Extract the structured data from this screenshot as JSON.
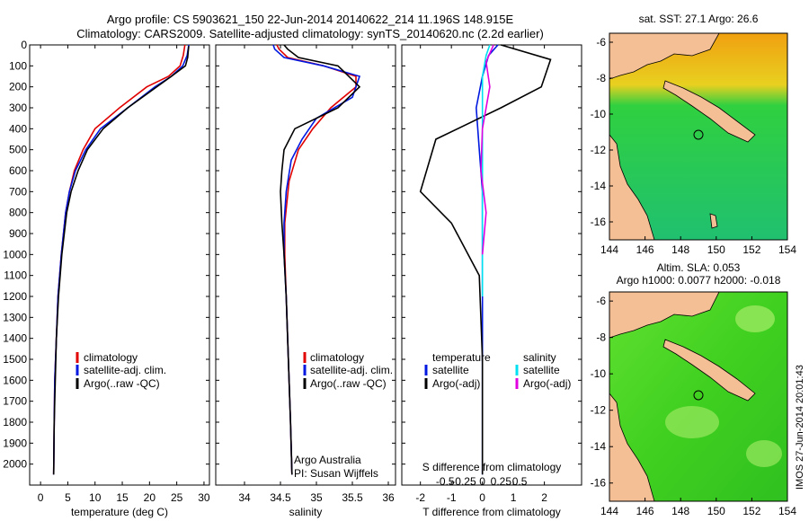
{
  "title_line1": "Argo profile: CS 5903621_150 22-Jun-2014 20140622_214 11.196S 148.915E",
  "title_line2": "Climatology: CARS2009. Satellite-adjusted climatology: synTS_20140620.nc (2.2d earlier)",
  "credit": "Argo Australia",
  "pi": "PI: Susan Wijffels",
  "watermark": "IMOS 27-Jun-2014 20:01:43",
  "colors": {
    "clim": "#e00000",
    "sat": "#0018e0",
    "argo": "#000000",
    "sat_sal": "#00e0f0",
    "argo_sal": "#e000e0",
    "land": "#f5bf96",
    "circle": "#000000"
  },
  "chart_data": [
    {
      "type": "line",
      "name": "temperature",
      "xlabel": "temperature (deg C)",
      "xlim": [
        -2,
        31
      ],
      "ylim": [
        2100,
        0
      ],
      "xticks": [
        0,
        5,
        10,
        15,
        20,
        25,
        30
      ],
      "yticks": [
        0,
        100,
        200,
        300,
        400,
        500,
        600,
        700,
        800,
        900,
        1000,
        1100,
        1200,
        1300,
        1400,
        1500,
        1600,
        1700,
        1800,
        1900,
        2000
      ],
      "legend": [
        "climatology",
        "satellite-adj. clim.",
        "Argo(..raw -QC)"
      ],
      "series": [
        {
          "name": "climatology",
          "color": "#e00000",
          "x": [
            26.5,
            26.2,
            25.6,
            23.5,
            19.5,
            14.5,
            10.0,
            7.8,
            6.2,
            5.3,
            4.6,
            3.8,
            3.2,
            2.9,
            2.6,
            2.5,
            2.4
          ],
          "y": [
            0,
            50,
            100,
            150,
            200,
            300,
            400,
            500,
            600,
            700,
            800,
            1000,
            1200,
            1400,
            1600,
            1800,
            2050
          ]
        },
        {
          "name": "satellite-adj. clim.",
          "color": "#0018e0",
          "x": [
            27.2,
            26.9,
            26.1,
            24.0,
            21.0,
            16.0,
            11.0,
            8.3,
            6.4,
            5.3,
            4.6,
            3.8,
            3.2,
            2.9,
            2.6,
            2.5,
            2.4
          ],
          "y": [
            0,
            50,
            100,
            150,
            200,
            300,
            400,
            500,
            600,
            700,
            800,
            1000,
            1200,
            1400,
            1600,
            1800,
            2050
          ]
        },
        {
          "name": "Argo(..raw -QC)",
          "color": "#000000",
          "x": [
            27.2,
            27.1,
            27.0,
            26.6,
            24.0,
            16.0,
            11.5,
            8.6,
            6.9,
            5.6,
            4.8,
            3.9,
            3.3,
            2.9,
            2.7,
            2.5,
            2.4
          ],
          "y": [
            5,
            30,
            60,
            100,
            150,
            300,
            400,
            500,
            600,
            700,
            800,
            1000,
            1200,
            1400,
            1600,
            1800,
            2050
          ]
        }
      ]
    },
    {
      "type": "line",
      "name": "salinity",
      "xlabel": "salinity",
      "xlim": [
        33.6,
        36.1
      ],
      "ylim": [
        2100,
        0
      ],
      "xticks": [
        34,
        34.5,
        35,
        35.5,
        36
      ],
      "legend": [
        "climatology",
        "satellite-adj. clim.",
        "Argo(..raw -QC)"
      ],
      "series": [
        {
          "name": "climatology",
          "color": "#e00000",
          "x": [
            34.45,
            34.48,
            34.6,
            35.1,
            35.55,
            35.55,
            35.2,
            34.95,
            34.75,
            34.62,
            34.56,
            34.56,
            34.58,
            34.6,
            34.62,
            34.64,
            34.66
          ],
          "y": [
            0,
            20,
            60,
            100,
            150,
            200,
            300,
            400,
            500,
            650,
            850,
            1000,
            1200,
            1400,
            1600,
            1800,
            2050
          ]
        },
        {
          "name": "satellite-adj. clim.",
          "color": "#0018e0",
          "x": [
            34.4,
            34.42,
            34.55,
            35.1,
            35.6,
            35.5,
            35.0,
            34.8,
            34.65,
            34.58,
            34.55,
            34.55,
            34.58,
            34.6,
            34.62,
            34.64,
            34.66
          ],
          "y": [
            0,
            20,
            60,
            100,
            150,
            250,
            350,
            450,
            550,
            700,
            850,
            1000,
            1200,
            1400,
            1600,
            1800,
            2050
          ]
        },
        {
          "name": "Argo(..raw -QC)",
          "color": "#000000",
          "x": [
            34.55,
            34.6,
            34.75,
            35.3,
            35.6,
            35.3,
            34.7,
            34.55,
            34.52,
            34.5,
            34.52,
            34.55,
            34.58,
            34.6,
            34.62,
            34.64,
            34.66
          ],
          "y": [
            0,
            20,
            60,
            100,
            200,
            300,
            400,
            500,
            600,
            700,
            850,
            1000,
            1200,
            1400,
            1600,
            1800,
            2050
          ]
        }
      ]
    },
    {
      "type": "line",
      "name": "difference",
      "xlabel": "T difference from climatology",
      "xlabel2": "S difference from climatology",
      "xlim": [
        -2.6,
        3.2
      ],
      "ylim": [
        2100,
        0
      ],
      "xticks": [
        -2,
        -1,
        0,
        1,
        2
      ],
      "xticks2": [
        -0.5,
        -0.25,
        0,
        0.25,
        0.5
      ],
      "xticks2_labels": [
        "-0.5",
        "-0.25",
        "0",
        "0.25",
        "0.5"
      ],
      "legend_temperature_header": "temperature",
      "legend_salinity_header": "salinity",
      "legend": [
        "satellite",
        "Argo(-adj)",
        "satellite",
        "Argo(-adj)"
      ],
      "series": [
        {
          "name": "T satellite",
          "color": "#0018e0",
          "x": [
            0.5,
            0.2,
            0.0,
            -0.2,
            -0.1,
            0.0,
            0.0,
            0.0,
            0.0
          ],
          "y": [
            0,
            50,
            150,
            300,
            500,
            700,
            900,
            1400,
            2050
          ]
        },
        {
          "name": "T Argo(-adj)",
          "color": "#000000",
          "x": [
            0.6,
            2.2,
            1.9,
            0.6,
            -1.5,
            -2.0,
            -1.0,
            -0.1,
            0.0,
            0.0
          ],
          "y": [
            0,
            70,
            200,
            300,
            450,
            700,
            850,
            1100,
            1500,
            2050
          ]
        },
        {
          "name": "S satellite",
          "color": "#00e0f0",
          "x": [
            0.1,
            0.05,
            0.0,
            0.0,
            0.0,
            0.0
          ],
          "y": [
            0,
            50,
            150,
            400,
            800,
            1200
          ]
        },
        {
          "name": "S Argo(-adj)",
          "color": "#e000e0",
          "x": [
            0.15,
            0.05,
            0.1,
            0.0,
            -0.02,
            0.05,
            0.0
          ],
          "y": [
            0,
            80,
            200,
            400,
            600,
            800,
            1000
          ]
        }
      ]
    },
    {
      "type": "heatmap",
      "name": "sst_map",
      "title": "sat. SST: 27.1  Argo: 26.6",
      "xlim": [
        144,
        154
      ],
      "ylim": [
        -17,
        -5.5
      ],
      "xticks": [
        144,
        146,
        148,
        150,
        152,
        154
      ],
      "yticks": [
        -6,
        -8,
        -10,
        -12,
        -14,
        -16
      ],
      "profile_location": [
        148.9,
        -11.2
      ]
    },
    {
      "type": "heatmap",
      "name": "sla_map",
      "title": "Altim. SLA: 0.053",
      "subtitle": "Argo h1000: 0.0077 h2000: -0.018",
      "xlim": [
        144,
        154
      ],
      "ylim": [
        -17,
        -5.5
      ],
      "xticks": [
        144,
        146,
        148,
        150,
        152,
        154
      ],
      "yticks": [
        -6,
        -8,
        -10,
        -12,
        -14,
        -16
      ],
      "profile_location": [
        148.9,
        -11.2
      ]
    }
  ]
}
